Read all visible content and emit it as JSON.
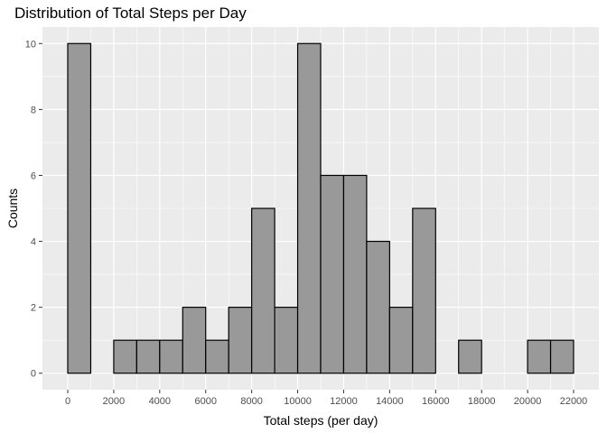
{
  "chart_data": {
    "type": "bar",
    "title": "Distribution of Total Steps per Day",
    "xlabel": "Total steps (per day)",
    "ylabel": "Counts",
    "bin_width": 1000,
    "bins": [
      {
        "start": 0,
        "end": 1000,
        "count": 10
      },
      {
        "start": 1000,
        "end": 2000,
        "count": 0
      },
      {
        "start": 2000,
        "end": 3000,
        "count": 1
      },
      {
        "start": 3000,
        "end": 4000,
        "count": 1
      },
      {
        "start": 4000,
        "end": 5000,
        "count": 1
      },
      {
        "start": 5000,
        "end": 6000,
        "count": 2
      },
      {
        "start": 6000,
        "end": 7000,
        "count": 1
      },
      {
        "start": 7000,
        "end": 8000,
        "count": 2
      },
      {
        "start": 8000,
        "end": 9000,
        "count": 5
      },
      {
        "start": 9000,
        "end": 10000,
        "count": 2
      },
      {
        "start": 10000,
        "end": 11000,
        "count": 10
      },
      {
        "start": 11000,
        "end": 12000,
        "count": 6
      },
      {
        "start": 12000,
        "end": 13000,
        "count": 6
      },
      {
        "start": 13000,
        "end": 14000,
        "count": 4
      },
      {
        "start": 14000,
        "end": 15000,
        "count": 2
      },
      {
        "start": 15000,
        "end": 16000,
        "count": 5
      },
      {
        "start": 16000,
        "end": 17000,
        "count": 0
      },
      {
        "start": 17000,
        "end": 18000,
        "count": 1
      },
      {
        "start": 18000,
        "end": 19000,
        "count": 0
      },
      {
        "start": 19000,
        "end": 20000,
        "count": 0
      },
      {
        "start": 20000,
        "end": 21000,
        "count": 1
      },
      {
        "start": 21000,
        "end": 22000,
        "count": 1
      }
    ],
    "xlim": [
      -1100,
      23100
    ],
    "ylim": [
      -0.5,
      10.5
    ],
    "x_ticks": [
      0,
      2000,
      4000,
      6000,
      8000,
      10000,
      12000,
      14000,
      16000,
      18000,
      20000,
      22000
    ],
    "y_ticks": [
      0,
      2,
      4,
      6,
      8,
      10
    ],
    "grid": true,
    "colors": {
      "panel_background": "#ebebeb",
      "grid_major": "#ffffff",
      "bar_fill": "#999999",
      "bar_outline": "#000000"
    }
  }
}
